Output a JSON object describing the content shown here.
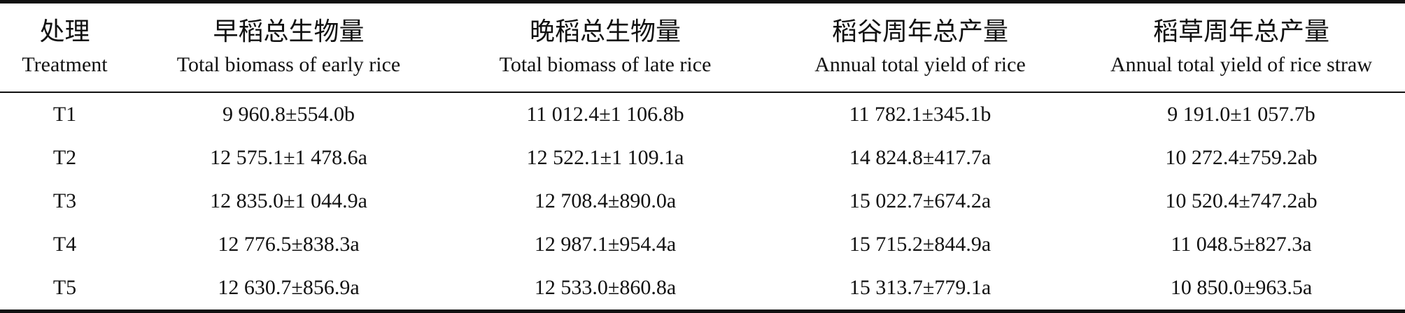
{
  "table": {
    "header": [
      {
        "zh": "处理",
        "en": "Treatment"
      },
      {
        "zh": "早稻总生物量",
        "en": "Total biomass of early rice"
      },
      {
        "zh": "晚稻总生物量",
        "en": "Total biomass of late rice"
      },
      {
        "zh": "稻谷周年总产量",
        "en": "Annual total yield of rice"
      },
      {
        "zh": "稻草周年总产量",
        "en": "Annual total yield of rice straw"
      }
    ],
    "rows": [
      [
        "T1",
        "9 960.8±554.0b",
        "11 012.4±1 106.8b",
        "11 782.1±345.1b",
        "9 191.0±1 057.7b"
      ],
      [
        "T2",
        "12 575.1±1 478.6a",
        "12 522.1±1 109.1a",
        "14 824.8±417.7a",
        "10 272.4±759.2ab"
      ],
      [
        "T3",
        "12 835.0±1 044.9a",
        "12 708.4±890.0a",
        "15 022.7±674.2a",
        "10 520.4±747.2ab"
      ],
      [
        "T4",
        "12 776.5±838.3a",
        "12 987.1±954.4a",
        "15 715.2±844.9a",
        "11 048.5±827.3a"
      ],
      [
        "T5",
        "12 630.7±856.9a",
        "12 533.0±860.8a",
        "15 313.7±779.1a",
        "10 850.0±963.5a"
      ]
    ]
  }
}
